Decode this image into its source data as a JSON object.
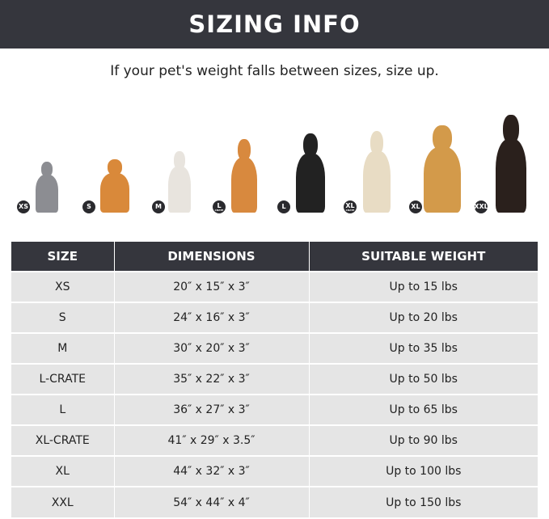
{
  "title": "SIZING INFO",
  "subtitle": "If your pet's weight falls between sizes, size up.",
  "pets": [
    {
      "badge": "XS",
      "sub": "",
      "animal": "cat",
      "color": "#8c8d92"
    },
    {
      "badge": "S",
      "sub": "",
      "animal": "pomeranian",
      "color": "#d9893a"
    },
    {
      "badge": "M",
      "sub": "",
      "animal": "french-bulldog",
      "color": "#e8e4de"
    },
    {
      "badge": "L",
      "sub": "CRATE",
      "animal": "shiba-inu",
      "color": "#d8893e"
    },
    {
      "badge": "L",
      "sub": "",
      "animal": "border-collie",
      "color": "#222222"
    },
    {
      "badge": "XL",
      "sub": "CRATE",
      "animal": "labrador",
      "color": "#e8dcc4"
    },
    {
      "badge": "XL",
      "sub": "",
      "animal": "golden-retriever",
      "color": "#d39a4a"
    },
    {
      "badge": "XXL",
      "sub": "",
      "animal": "doberman",
      "color": "#2a201c"
    }
  ],
  "table": {
    "headers": [
      "SIZE",
      "DIMENSIONS",
      "SUITABLE WEIGHT"
    ],
    "rows": [
      [
        "XS",
        "20″ x 15″ x 3″",
        "Up to 15 lbs"
      ],
      [
        "S",
        "24″ x 16″ x 3″",
        "Up to 20 lbs"
      ],
      [
        "M",
        "30″ x 20″ x 3″",
        "Up to 35 lbs"
      ],
      [
        "L-CRATE",
        "35″ x 22″ x 3″",
        "Up to 50 lbs"
      ],
      [
        "L",
        "36″ x 27″ x 3″",
        "Up to 65 lbs"
      ],
      [
        "XL-CRATE",
        "41″ x 29″ x 3.5″",
        "Up to 90 lbs"
      ],
      [
        "XL",
        "44″ x 32″ x 3″",
        "Up to 100 lbs"
      ],
      [
        "XXL",
        "54″ x 44″ x 4″",
        "Up to 150 lbs"
      ]
    ]
  }
}
